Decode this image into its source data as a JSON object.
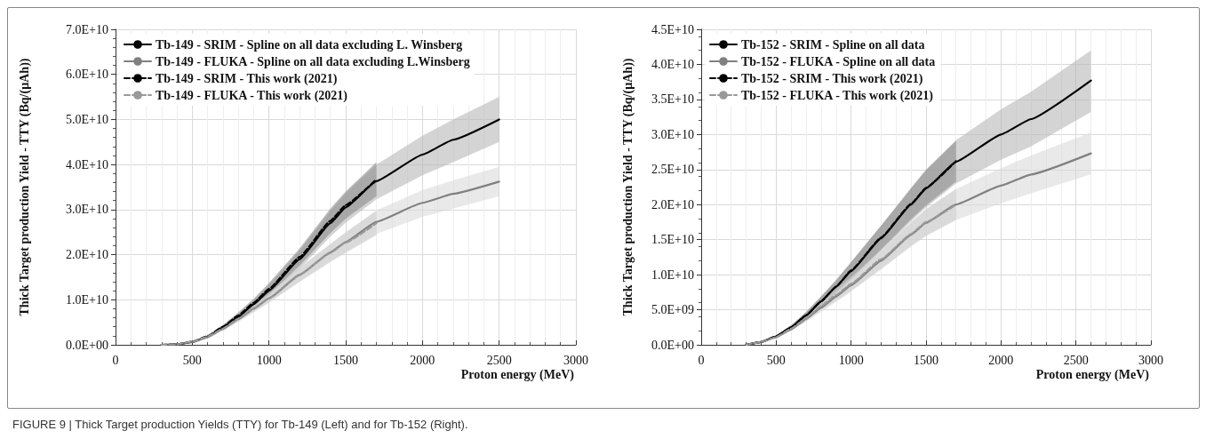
{
  "chart_data": [
    {
      "type": "line",
      "xlabel": "Proton energy (MeV)",
      "ylabel": "Thick Target production Yield - TTY (Bq/(µAh))",
      "xlim": [
        0,
        3000
      ],
      "xticks": [
        0,
        500,
        1000,
        1500,
        2000,
        2500,
        3000
      ],
      "ylim": [
        0,
        70000000000.0
      ],
      "yticks": [
        {
          "value": 0,
          "label": "0.0E+00"
        },
        {
          "value": 10000000000.0,
          "label": "1.0E+10"
        },
        {
          "value": 20000000000.0,
          "label": "2.0E+10"
        },
        {
          "value": 30000000000.0,
          "label": "3.0E+10"
        },
        {
          "value": 40000000000.0,
          "label": "4.0E+10"
        },
        {
          "value": 50000000000.0,
          "label": "5.0E+10"
        },
        {
          "value": 60000000000.0,
          "label": "6.0E+10"
        },
        {
          "value": 70000000000.0,
          "label": "7.0E+10"
        }
      ],
      "grid": true,
      "legend": "top left",
      "marker": "none",
      "annotations": [
        "FIGURE 9 | Thick Target production Yields (TTY) for Tb-149 (Left) and for Tb-152 (Right)."
      ],
      "series": [
        {
          "name": "Tb-149 - SRIM - Spline on all data excluding L. Winsberg",
          "color": "#000000",
          "line_style": "solid",
          "x": [
            300,
            400,
            500,
            600,
            700,
            800,
            900,
            1000,
            1200,
            1400,
            1500,
            1700,
            2000,
            2200,
            2500
          ],
          "values": [
            0,
            100000000.0,
            600000000.0,
            1800000000.0,
            3800000000.0,
            6200000000.0,
            9000000000.0,
            12000000000.0,
            19000000000.0,
            27000000000.0,
            30500000000.0,
            36300000000.0,
            42200000000.0,
            45500000000.0,
            50000000000.0
          ],
          "lower": [
            0,
            100000000.0,
            500000000.0,
            1600000000.0,
            3400000000.0,
            5500000000.0,
            8000000000.0,
            10700000000.0,
            16900000000.0,
            24000000000.0,
            27100000000.0,
            32300000000.0,
            37600000000.0,
            40500000000.0,
            45000000000.0
          ],
          "upper": [
            0,
            100000000.0,
            700000000.0,
            2000000000.0,
            4200000000.0,
            6800000000.0,
            9900000000.0,
            13200000000.0,
            20900000000.0,
            29700000000.0,
            33600000000.0,
            40000000000.0,
            46400000000.0,
            50000000000.0,
            55000000000.0
          ]
        },
        {
          "name": "Tb-149 - FLUKA - Spline on all data excluding L.Winsberg",
          "color": "#808080",
          "line_style": "solid",
          "x": [
            300,
            400,
            500,
            600,
            700,
            800,
            900,
            1000,
            1200,
            1400,
            1500,
            1700,
            2000,
            2200,
            2500
          ],
          "values": [
            0,
            100000000.0,
            600000000.0,
            1700000000.0,
            3500000000.0,
            5700000000.0,
            8000000000.0,
            10300000000.0,
            15500000000.0,
            20500000000.0,
            22800000000.0,
            27300000000.0,
            31500000000.0,
            33500000000.0,
            36200000000.0
          ],
          "lower": [
            0,
            100000000.0,
            500000000.0,
            1500000000.0,
            3200000000.0,
            5100000000.0,
            7200000000.0,
            9300000000.0,
            14000000000.0,
            18500000000.0,
            20500000000.0,
            24600000000.0,
            28400000000.0,
            30200000000.0,
            33000000000.0
          ],
          "upper": [
            0,
            100000000.0,
            700000000.0,
            1900000000.0,
            3800000000.0,
            6200000000.0,
            8700000000.0,
            11200000000.0,
            16900000000.0,
            22300000000.0,
            24900000000.0,
            29800000000.0,
            34300000000.0,
            36500000000.0,
            39500000000.0
          ]
        },
        {
          "name": "Tb-149 - SRIM - This work (2021)",
          "color": "#000000",
          "line_style": "dashed",
          "x": [
            300,
            400,
            500,
            600,
            700,
            800,
            900,
            1000,
            1200,
            1400,
            1500,
            1700
          ],
          "values": [
            0,
            100000000.0,
            700000000.0,
            1900000000.0,
            4000000000.0,
            6500000000.0,
            9300000000.0,
            12400000000.0,
            19500000000.0,
            27500000000.0,
            31000000000.0,
            36700000000.0
          ],
          "lower": [
            0,
            100000000.0,
            600000000.0,
            1700000000.0,
            3600000000.0,
            5800000000.0,
            8400000000.0,
            11100000000.0,
            17600000000.0,
            24800000000.0,
            28000000000.0,
            33000000000.0
          ],
          "upper": [
            0,
            100000000.0,
            800000000.0,
            2100000000.0,
            4400000000.0,
            7200000000.0,
            10200000000.0,
            13700000000.0,
            21400000000.0,
            30200000000.0,
            34000000000.0,
            40500000000.0
          ]
        },
        {
          "name": "Tb-149 - FLUKA - This work (2021)",
          "color": "#999999",
          "line_style": "dashed",
          "x": [
            300,
            400,
            500,
            600,
            700,
            800,
            900,
            1000,
            1200,
            1400,
            1500,
            1700
          ],
          "values": [
            0,
            100000000.0,
            700000000.0,
            1800000000.0,
            3600000000.0,
            5800000000.0,
            8100000000.0,
            10400000000.0,
            15600000000.0,
            20400000000.0,
            22700000000.0,
            27000000000.0
          ],
          "lower": [
            0,
            100000000.0,
            600000000.0,
            1600000000.0,
            3200000000.0,
            5200000000.0,
            7300000000.0,
            9400000000.0,
            14000000000.0,
            18400000000.0,
            20400000000.0,
            24300000000.0
          ],
          "upper": [
            0,
            100000000.0,
            800000000.0,
            2000000000.0,
            4000000000.0,
            6400000000.0,
            8900000000.0,
            11400000000.0,
            17200000000.0,
            22400000000.0,
            25000000000.0,
            29700000000.0
          ]
        }
      ]
    },
    {
      "type": "line",
      "xlabel": "Proton energy (MeV)",
      "ylabel": "Thick Target production Yield - TTY (Bq/(µAh))",
      "xlim": [
        0,
        3000
      ],
      "xticks": [
        0,
        500,
        1000,
        1500,
        2000,
        2500,
        3000
      ],
      "ylim": [
        0,
        45000000000.0
      ],
      "yticks": [
        {
          "value": 0,
          "label": "0.0E+00"
        },
        {
          "value": 5000000000.0,
          "label": "5.0E+09"
        },
        {
          "value": 10000000000.0,
          "label": "1.0E+10"
        },
        {
          "value": 15000000000.0,
          "label": "1.5E+10"
        },
        {
          "value": 20000000000.0,
          "label": "2.0E+10"
        },
        {
          "value": 25000000000.0,
          "label": "2.5E+10"
        },
        {
          "value": 30000000000.0,
          "label": "3.0E+10"
        },
        {
          "value": 35000000000.0,
          "label": "3.5E+10"
        },
        {
          "value": 40000000000.0,
          "label": "4.0E+10"
        },
        {
          "value": 45000000000.0,
          "label": "4.5E+10"
        }
      ],
      "grid": true,
      "legend": "top left",
      "marker": "none",
      "series": [
        {
          "name": "Tb-152 - SRIM - Spline on all data",
          "color": "#000000",
          "line_style": "solid",
          "x": [
            300,
            400,
            500,
            600,
            700,
            800,
            900,
            1000,
            1200,
            1400,
            1500,
            1700,
            2000,
            2200,
            2600
          ],
          "values": [
            0,
            400000000.0,
            1200000000.0,
            2500000000.0,
            4200000000.0,
            6200000000.0,
            8300000000.0,
            10500000000.0,
            15200000000.0,
            20000000000.0,
            22300000000.0,
            26100000000.0,
            30000000000.0,
            32200000000.0,
            37700000000.0
          ],
          "lower": [
            0,
            400000000.0,
            1100000000.0,
            2200000000.0,
            3700000000.0,
            5500000000.0,
            7300000000.0,
            9200000000.0,
            13400000000.0,
            17600000000.0,
            19600000000.0,
            23000000000.0,
            26400000000.0,
            28300000000.0,
            33200000000.0
          ],
          "upper": [
            0,
            400000000.0,
            1300000000.0,
            2800000000.0,
            4700000000.0,
            6900000000.0,
            9300000000.0,
            11800000000.0,
            17000000000.0,
            22400000000.0,
            25000000000.0,
            29200000000.0,
            33600000000.0,
            36100000000.0,
            42000000000.0
          ]
        },
        {
          "name": "Tb-152 - FLUKA - Spline on all data",
          "color": "#808080",
          "line_style": "solid",
          "x": [
            300,
            400,
            500,
            600,
            700,
            800,
            900,
            1000,
            1200,
            1400,
            1500,
            1700,
            2000,
            2200,
            2600
          ],
          "values": [
            0,
            400000000.0,
            1100000000.0,
            2200000000.0,
            3700000000.0,
            5300000000.0,
            6900000000.0,
            8500000000.0,
            12000000000.0,
            15700000000.0,
            17400000000.0,
            20000000000.0,
            22700000000.0,
            24300000000.0,
            27300000000.0
          ],
          "lower": [
            0,
            400000000.0,
            1000000000.0,
            2000000000.0,
            3300000000.0,
            4700000000.0,
            6100000000.0,
            7600000000.0,
            10700000000.0,
            14000000000.0,
            15500000000.0,
            17800000000.0,
            20200000000.0,
            21600000000.0,
            24300000000.0
          ],
          "upper": [
            0,
            400000000.0,
            1200000000.0,
            2400000000.0,
            4100000000.0,
            5900000000.0,
            7700000000.0,
            9400000000.0,
            13300000000.0,
            17400000000.0,
            19300000000.0,
            22200000000.0,
            25200000000.0,
            27000000000.0,
            30300000000.0
          ]
        },
        {
          "name": "Tb-152 - SRIM - This work (2021)",
          "color": "#000000",
          "line_style": "dashed",
          "x": [
            300,
            400,
            500,
            600,
            700,
            800,
            900,
            1000,
            1200,
            1400,
            1500,
            1700
          ],
          "values": [
            0,
            400000000.0,
            1200000000.0,
            2500000000.0,
            4200000000.0,
            6200000000.0,
            8300000000.0,
            10600000000.0,
            15300000000.0,
            20100000000.0,
            22400000000.0,
            26200000000.0
          ],
          "lower": [
            0,
            400000000.0,
            1100000000.0,
            2200000000.0,
            3700000000.0,
            5500000000.0,
            7400000000.0,
            9400000000.0,
            13600000000.0,
            17900000000.0,
            19900000000.0,
            23300000000.0
          ],
          "upper": [
            0,
            400000000.0,
            1300000000.0,
            2800000000.0,
            4700000000.0,
            6900000000.0,
            9200000000.0,
            11800000000.0,
            17000000000.0,
            22300000000.0,
            24900000000.0,
            29100000000.0
          ]
        },
        {
          "name": "Tb-152 - FLUKA - This work (2021)",
          "color": "#999999",
          "line_style": "dashed",
          "x": [
            300,
            400,
            500,
            600,
            700,
            800,
            900,
            1000,
            1200,
            1400,
            1500,
            1700
          ],
          "values": [
            0,
            400000000.0,
            1100000000.0,
            2300000000.0,
            3800000000.0,
            5500000000.0,
            7100000000.0,
            8700000000.0,
            12200000000.0,
            15800000000.0,
            17500000000.0,
            20000000000.0
          ],
          "lower": [
            0,
            400000000.0,
            1000000000.0,
            2000000000.0,
            3400000000.0,
            4900000000.0,
            6300000000.0,
            7700000000.0,
            10900000000.0,
            14100000000.0,
            15600000000.0,
            17800000000.0
          ],
          "upper": [
            0,
            400000000.0,
            1200000000.0,
            2600000000.0,
            4200000000.0,
            6100000000.0,
            7900000000.0,
            9700000000.0,
            13500000000.0,
            17500000000.0,
            19400000000.0,
            22200000000.0
          ]
        }
      ]
    }
  ]
}
